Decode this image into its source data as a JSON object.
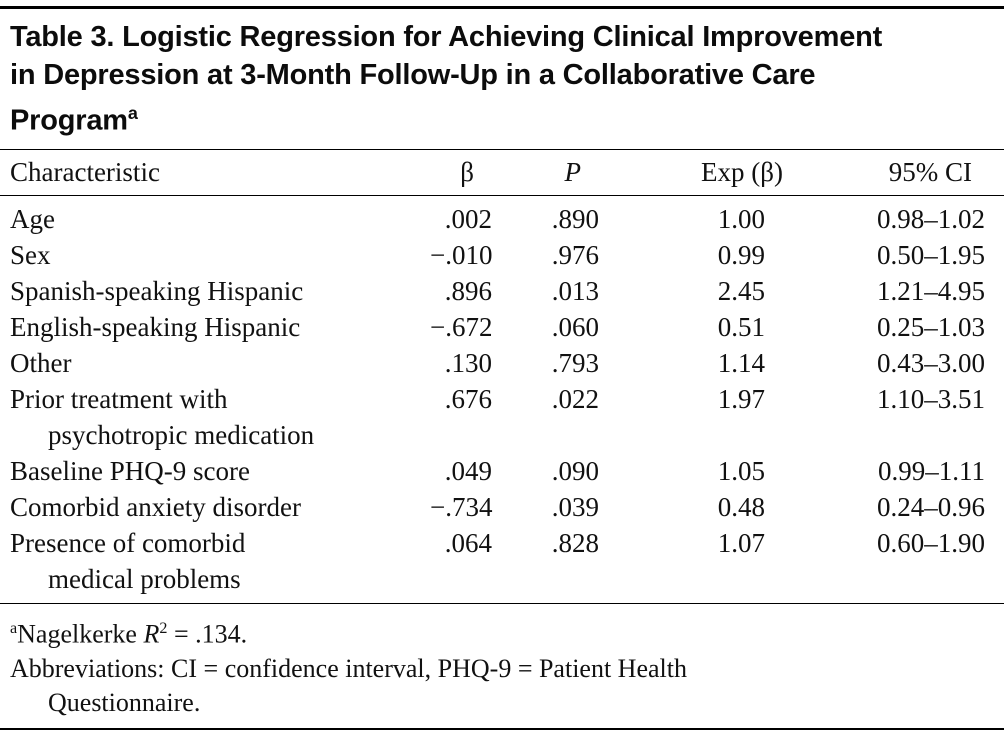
{
  "colors": {
    "background": "#ffffff",
    "text": "#111111",
    "rule": "#000000"
  },
  "title": {
    "text": "Table 3. Logistic Regression for Achieving Clinical Improvement in Depression at 3-Month Follow-Up in a Collaborative Care Program",
    "superscript": "a"
  },
  "header": {
    "characteristic": "Characteristic",
    "beta": "β",
    "p": "P",
    "exp_beta": "Exp (β)",
    "ci": "95% CI"
  },
  "rows": [
    {
      "name": "Age",
      "name2": "",
      "beta": ".002",
      "p": ".890",
      "exp": "1.00",
      "ci": "0.98–1.02"
    },
    {
      "name": "Sex",
      "name2": "",
      "beta": "−.010",
      "p": ".976",
      "exp": "0.99",
      "ci": "0.50–1.95"
    },
    {
      "name": "Spanish-speaking Hispanic",
      "name2": "",
      "beta": ".896",
      "p": ".013",
      "exp": "2.45",
      "ci": "1.21–4.95"
    },
    {
      "name": "English-speaking Hispanic",
      "name2": "",
      "beta": "−.672",
      "p": ".060",
      "exp": "0.51",
      "ci": "0.25–1.03"
    },
    {
      "name": "Other",
      "name2": "",
      "beta": ".130",
      "p": ".793",
      "exp": "1.14",
      "ci": "0.43–3.00"
    },
    {
      "name": "Prior treatment with",
      "name2": "psychotropic medication",
      "beta": ".676",
      "p": ".022",
      "exp": "1.97",
      "ci": "1.10–3.51"
    },
    {
      "name": "Baseline PHQ-9 score",
      "name2": "",
      "beta": ".049",
      "p": ".090",
      "exp": "1.05",
      "ci": "0.99–1.11"
    },
    {
      "name": "Comorbid anxiety disorder",
      "name2": "",
      "beta": "−.734",
      "p": ".039",
      "exp": "0.48",
      "ci": "0.24–0.96"
    },
    {
      "name": "Presence of comorbid",
      "name2": "medical problems",
      "beta": ".064",
      "p": ".828",
      "exp": "1.07",
      "ci": "0.60–1.90"
    }
  ],
  "footnotes": {
    "a_marker": "a",
    "nagelkerke_prefix": "Nagelkerke ",
    "r": "R",
    "r_sup": "2",
    "nagelkerke_value": " = .134.",
    "abbrev_line1": "Abbreviations: CI = confidence interval, PHQ-9 = Patient Health",
    "abbrev_line2": "Questionnaire."
  }
}
